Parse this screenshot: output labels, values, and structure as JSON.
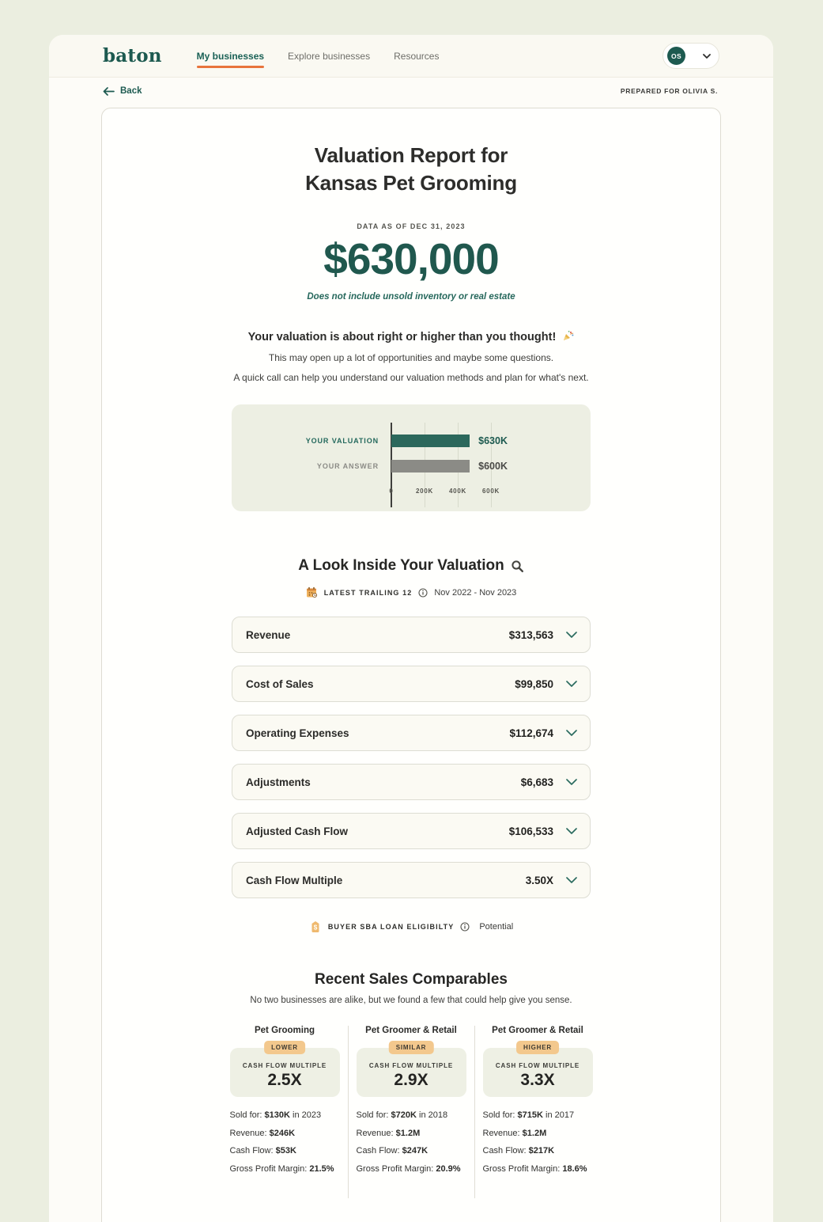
{
  "brand": {
    "logo_text": "baton"
  },
  "nav": {
    "items": [
      {
        "label": "My businesses"
      },
      {
        "label": "Explore businesses"
      },
      {
        "label": "Resources"
      }
    ]
  },
  "header": {
    "avatar_initials": "OS",
    "back_label": "Back",
    "prepared_for": "PREPARED FOR OLIVIA S."
  },
  "report": {
    "title_line1": "Valuation Report for",
    "title_line2": "Kansas Pet Grooming",
    "data_as_of": "DATA AS OF DEC 31, 2023",
    "valuation_amount": "$630,000",
    "disclaimer": "Does not include unsold inventory or real estate",
    "headline": "Your valuation is about right or higher than you thought!",
    "subline1": "This may open up a lot of opportunities and maybe some questions.",
    "subline2": "A quick call can help you understand our valuation methods and plan for what's next."
  },
  "chart_data": {
    "type": "bar",
    "orientation": "horizontal",
    "categories": [
      "YOUR VALUATION",
      "YOUR ANSWER"
    ],
    "values": [
      630000,
      600000
    ],
    "value_labels": [
      "$630K",
      "$600K"
    ],
    "bar_colors": [
      "#2c685c",
      "#8b8b86"
    ],
    "category_colors": [
      "#23685c",
      "#8b8b86"
    ],
    "value_label_colors": [
      "#1d5a50",
      "#4a4a47"
    ],
    "x_ticks": [
      "0",
      "200K",
      "400K",
      "600K"
    ],
    "x_tick_values": [
      0,
      200000,
      400000,
      600000
    ],
    "xlim": [
      0,
      700000
    ],
    "grid": true,
    "legend": false,
    "title": ""
  },
  "breakdown": {
    "heading": "A Look Inside Your Valuation",
    "period_label": "LATEST TRAILING 12",
    "period_range": "Nov 2022 - Nov 2023",
    "rows": [
      {
        "label": "Revenue",
        "value": "$313,563"
      },
      {
        "label": "Cost of Sales",
        "value": "$99,850"
      },
      {
        "label": "Operating Expenses",
        "value": "$112,674"
      },
      {
        "label": "Adjustments",
        "value": "$6,683"
      },
      {
        "label": "Adjusted Cash Flow",
        "value": "$106,533"
      },
      {
        "label": "Cash Flow Multiple",
        "value": "3.50X"
      }
    ],
    "sba_label": "BUYER SBA LOAN ELIGIBILTY",
    "sba_value": "Potential"
  },
  "comparables": {
    "heading": "Recent Sales Comparables",
    "subheading": "No two businesses are alike, but we found a few that could help give you sense.",
    "multiple_label": "CASH FLOW MULTIPLE",
    "cards": [
      {
        "title": "Pet Grooming",
        "badge": "LOWER",
        "multiple": "2.5X",
        "sold_label": "Sold for:",
        "sold_value": "$130K",
        "sold_suffix": "in 2023",
        "revenue_label": "Revenue:",
        "revenue_value": "$246K",
        "cashflow_label": "Cash Flow:",
        "cashflow_value": "$53K",
        "gpm_label": "Gross Profit Margin:",
        "gpm_value": "21.5%"
      },
      {
        "title": "Pet Groomer & Retail",
        "badge": "SIMILAR",
        "multiple": "2.9X",
        "sold_label": "Sold for:",
        "sold_value": "$720K",
        "sold_suffix": "in 2018",
        "revenue_label": "Revenue:",
        "revenue_value": "$1.2M",
        "cashflow_label": "Cash Flow:",
        "cashflow_value": "$247K",
        "gpm_label": "Gross Profit Margin:",
        "gpm_value": "20.9%"
      },
      {
        "title": "Pet Groomer & Retail",
        "badge": "HIGHER",
        "multiple": "3.3X",
        "sold_label": "Sold for:",
        "sold_value": "$715K",
        "sold_suffix": "in 2017",
        "revenue_label": "Revenue:",
        "revenue_value": "$1.2M",
        "cashflow_label": "Cash Flow:",
        "cashflow_value": "$217K",
        "gpm_label": "Gross Profit Margin:",
        "gpm_value": "18.6%"
      }
    ]
  },
  "colors": {
    "accent_teal": "#1d5a50",
    "accent_orange": "#e8743c",
    "badge_bg": "#f3c88d",
    "sage_panel": "#edefe3",
    "page_bg": "#ebeee0"
  }
}
